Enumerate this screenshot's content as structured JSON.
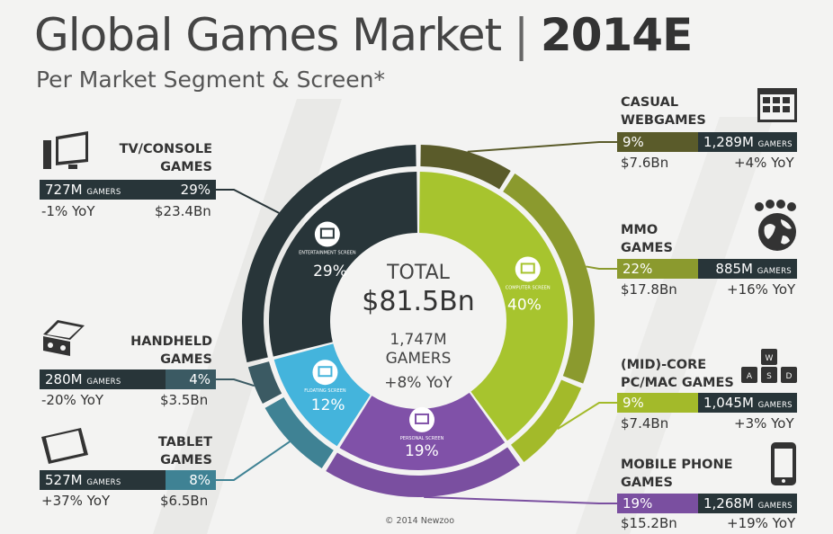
{
  "header": {
    "title_main": "Global Games Market",
    "title_separator": "|",
    "title_year": "2014E",
    "subtitle": "Per Market Segment & Screen*"
  },
  "center": {
    "total_label": "TOTAL",
    "total_value": "$81.5Bn",
    "gamers_value": "1,747M",
    "gamers_label": "GAMERS",
    "yoy": "+8% YoY"
  },
  "footer": {
    "copyright": "© 2014 Newzoo"
  },
  "colors": {
    "tv": "#283539",
    "handheld": "#3b5a63",
    "tablet": "#3f8294",
    "casual": "#5a5b2a",
    "mmo": "#8b9a2e",
    "midcore": "#a3ba2a",
    "mobile": "#7a4fa0",
    "entertainment": "#283539",
    "computer": "#a7c42e",
    "personal": "#8051a8",
    "floating": "#44b4dc",
    "bar_dark": "#283539"
  },
  "chart_data": {
    "type": "pie",
    "title": "Global Games Market | 2014E",
    "subtitle": "Per Market Segment & Screen*",
    "total": {
      "revenue_bn": 81.5,
      "gamers_m": 1747,
      "yoy_pct": 8
    },
    "screens": [
      {
        "name": "ENTERTAINMENT SCREEN",
        "label": "29%",
        "share_pct": 29
      },
      {
        "name": "COMPUTER SCREEN",
        "label": "40%",
        "share_pct": 40
      },
      {
        "name": "PERSONAL SCREEN",
        "label": "19%",
        "share_pct": 19
      },
      {
        "name": "FLOATING SCREEN",
        "label": "12%",
        "share_pct": 12
      }
    ],
    "segments": [
      {
        "key": "tv",
        "title": "TV/CONSOLE\nGAMES",
        "gamers": "727M",
        "share": "29%",
        "share_pct": 29,
        "yoy": "-1% YoY",
        "revenue": "$23.4Bn",
        "revenue_bn": 23.4
      },
      {
        "key": "handheld",
        "title": "HANDHELD\nGAMES",
        "gamers": "280M",
        "share": "4%",
        "share_pct": 4,
        "yoy": "-20% YoY",
        "revenue": "$3.5Bn",
        "revenue_bn": 3.5
      },
      {
        "key": "tablet",
        "title": "TABLET\nGAMES",
        "gamers": "527M",
        "share": "8%",
        "share_pct": 8,
        "yoy": "+37% YoY",
        "revenue": "$6.5Bn",
        "revenue_bn": 6.5
      },
      {
        "key": "casual",
        "title": "CASUAL\nWEBGAMES",
        "gamers": "1,289M",
        "share": "9%",
        "share_pct": 9,
        "yoy": "+4% YoY",
        "revenue": "$7.6Bn",
        "revenue_bn": 7.6
      },
      {
        "key": "mmo",
        "title": "MMO\nGAMES",
        "gamers": "885M",
        "share": "22%",
        "share_pct": 22,
        "yoy": "+16% YoY",
        "revenue": "$17.8Bn",
        "revenue_bn": 17.8
      },
      {
        "key": "midcore",
        "title": "(MID)-CORE\nPC/MAC GAMES",
        "gamers": "1,045M",
        "share": "9%",
        "share_pct": 9,
        "yoy": "+3% YoY",
        "revenue": "$7.4Bn",
        "revenue_bn": 7.4
      },
      {
        "key": "mobile",
        "title": "MOBILE PHONE\nGAMES",
        "gamers": "1,268M",
        "share": "19%",
        "share_pct": 19,
        "yoy": "+19% YoY",
        "revenue": "$15.2Bn",
        "revenue_bn": 15.2
      }
    ],
    "gamers_unit": "GAMERS"
  }
}
